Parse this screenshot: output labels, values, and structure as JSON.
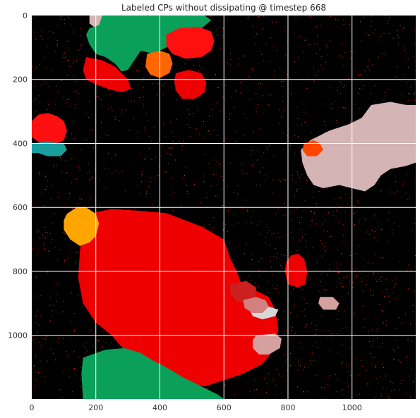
{
  "chart_data": {
    "type": "heatmap",
    "title": "Labeled CPs without dissipating @ timestep 668",
    "xlabel": "",
    "ylabel": "",
    "xlim": [
      0,
      1199
    ],
    "ylim": [
      1199,
      0
    ],
    "xticks": [
      0,
      200,
      400,
      600,
      800,
      1000
    ],
    "yticks": [
      0,
      200,
      400,
      600,
      800,
      1000
    ],
    "grid": true,
    "background_color": "#000000",
    "speckle_color": "#ff2a2a",
    "regions": [
      {
        "label": "large-red-bottom-center",
        "color": "#ee0000",
        "points": [
          [
            158,
            660
          ],
          [
            200,
            615
          ],
          [
            250,
            605
          ],
          [
            330,
            610
          ],
          [
            420,
            618
          ],
          [
            530,
            660
          ],
          [
            600,
            700
          ],
          [
            620,
            760
          ],
          [
            640,
            800
          ],
          [
            655,
            840
          ],
          [
            700,
            860
          ],
          [
            740,
            880
          ],
          [
            760,
            920
          ],
          [
            770,
            980
          ],
          [
            760,
            1040
          ],
          [
            720,
            1090
          ],
          [
            660,
            1120
          ],
          [
            600,
            1140
          ],
          [
            540,
            1160
          ],
          [
            480,
            1150
          ],
          [
            420,
            1120
          ],
          [
            360,
            1100
          ],
          [
            300,
            1060
          ],
          [
            250,
            1000
          ],
          [
            200,
            960
          ],
          [
            160,
            900
          ],
          [
            145,
            820
          ],
          [
            150,
            740
          ]
        ]
      },
      {
        "label": "green-bottom-left",
        "color": "#0aa05a",
        "points": [
          [
            160,
            1070
          ],
          [
            230,
            1045
          ],
          [
            290,
            1040
          ],
          [
            340,
            1055
          ],
          [
            380,
            1080
          ],
          [
            420,
            1100
          ],
          [
            470,
            1130
          ],
          [
            530,
            1160
          ],
          [
            580,
            1185
          ],
          [
            600,
            1199
          ],
          [
            160,
            1199
          ],
          [
            155,
            1120
          ]
        ]
      },
      {
        "label": "salmon-right-center",
        "color": "#d4b4b4",
        "points": [
          [
            840,
            420
          ],
          [
            870,
            390
          ],
          [
            930,
            360
          ],
          [
            990,
            340
          ],
          [
            1030,
            320
          ],
          [
            1060,
            280
          ],
          [
            1120,
            270
          ],
          [
            1170,
            280
          ],
          [
            1199,
            280
          ],
          [
            1199,
            460
          ],
          [
            1170,
            470
          ],
          [
            1120,
            480
          ],
          [
            1090,
            500
          ],
          [
            1070,
            530
          ],
          [
            1040,
            550
          ],
          [
            1000,
            540
          ],
          [
            960,
            530
          ],
          [
            910,
            540
          ],
          [
            880,
            530
          ],
          [
            860,
            500
          ],
          [
            845,
            460
          ]
        ]
      },
      {
        "label": "orange-tomato-right",
        "color": "#ff4500",
        "points": [
          [
            850,
            400
          ],
          [
            880,
            390
          ],
          [
            900,
            400
          ],
          [
            910,
            420
          ],
          [
            890,
            440
          ],
          [
            860,
            440
          ],
          [
            845,
            420
          ]
        ]
      },
      {
        "label": "red-left-mid",
        "color": "#ff1010",
        "points": [
          [
            0,
            330
          ],
          [
            20,
            310
          ],
          [
            50,
            305
          ],
          [
            80,
            315
          ],
          [
            100,
            330
          ],
          [
            110,
            360
          ],
          [
            100,
            390
          ],
          [
            80,
            400
          ],
          [
            50,
            400
          ],
          [
            20,
            395
          ],
          [
            0,
            380
          ]
        ]
      },
      {
        "label": "teal-left-mid",
        "color": "#1a9f9f",
        "points": [
          [
            0,
            400
          ],
          [
            40,
            395
          ],
          [
            100,
            400
          ],
          [
            110,
            420
          ],
          [
            90,
            440
          ],
          [
            50,
            440
          ],
          [
            20,
            430
          ],
          [
            0,
            430
          ]
        ]
      },
      {
        "label": "orange-left",
        "color": "#ffa500",
        "points": [
          [
            110,
            620
          ],
          [
            140,
            600
          ],
          [
            170,
            600
          ],
          [
            200,
            620
          ],
          [
            210,
            650
          ],
          [
            200,
            690
          ],
          [
            180,
            710
          ],
          [
            150,
            720
          ],
          [
            120,
            700
          ],
          [
            100,
            670
          ],
          [
            100,
            640
          ]
        ]
      },
      {
        "label": "red-small-right",
        "color": "#ee0000",
        "points": [
          [
            810,
            750
          ],
          [
            830,
            745
          ],
          [
            850,
            760
          ],
          [
            860,
            800
          ],
          [
            855,
            840
          ],
          [
            830,
            850
          ],
          [
            800,
            840
          ],
          [
            790,
            800
          ],
          [
            795,
            770
          ]
        ]
      },
      {
        "label": "salmon-small-right",
        "color": "#d4a0a0",
        "points": [
          [
            900,
            880
          ],
          [
            940,
            880
          ],
          [
            960,
            900
          ],
          [
            950,
            920
          ],
          [
            910,
            920
          ],
          [
            895,
            900
          ]
        ]
      },
      {
        "label": "salmon-top-left",
        "color": "#d4b4b4",
        "points": [
          [
            180,
            0
          ],
          [
            240,
            0
          ],
          [
            230,
            30
          ],
          [
            200,
            40
          ],
          [
            180,
            25
          ]
        ]
      },
      {
        "label": "green-top",
        "color": "#0aa05a",
        "points": [
          [
            220,
            0
          ],
          [
            540,
            0
          ],
          [
            560,
            15
          ],
          [
            530,
            40
          ],
          [
            480,
            50
          ],
          [
            450,
            80
          ],
          [
            420,
            100
          ],
          [
            380,
            120
          ],
          [
            340,
            110
          ],
          [
            320,
            140
          ],
          [
            300,
            170
          ],
          [
            280,
            175
          ],
          [
            260,
            150
          ],
          [
            230,
            130
          ],
          [
            200,
            120
          ],
          [
            180,
            90
          ],
          [
            170,
            60
          ],
          [
            180,
            40
          ],
          [
            210,
            30
          ]
        ]
      },
      {
        "label": "red-top-right-blob",
        "color": "#ff1010",
        "points": [
          [
            420,
            60
          ],
          [
            460,
            40
          ],
          [
            520,
            35
          ],
          [
            560,
            50
          ],
          [
            570,
            80
          ],
          [
            560,
            110
          ],
          [
            530,
            130
          ],
          [
            480,
            135
          ],
          [
            440,
            120
          ],
          [
            420,
            95
          ]
        ]
      },
      {
        "label": "red-top-left-blob",
        "color": "#ee0000",
        "points": [
          [
            170,
            130
          ],
          [
            220,
            140
          ],
          [
            260,
            160
          ],
          [
            280,
            180
          ],
          [
            300,
            200
          ],
          [
            310,
            230
          ],
          [
            280,
            240
          ],
          [
            240,
            230
          ],
          [
            200,
            215
          ],
          [
            170,
            200
          ],
          [
            160,
            170
          ]
        ]
      },
      {
        "label": "orange-top",
        "color": "#ff6600",
        "points": [
          [
            360,
            120
          ],
          [
            400,
            110
          ],
          [
            430,
            120
          ],
          [
            440,
            150
          ],
          [
            430,
            180
          ],
          [
            400,
            195
          ],
          [
            370,
            185
          ],
          [
            355,
            160
          ]
        ]
      },
      {
        "label": "red-center-top",
        "color": "#ee0000",
        "points": [
          [
            450,
            180
          ],
          [
            490,
            170
          ],
          [
            530,
            180
          ],
          [
            545,
            210
          ],
          [
            540,
            240
          ],
          [
            510,
            260
          ],
          [
            470,
            260
          ],
          [
            450,
            235
          ],
          [
            445,
            205
          ]
        ]
      },
      {
        "label": "gray-light-center-right",
        "color": "#d8d8d8",
        "points": [
          [
            680,
            920
          ],
          [
            740,
            910
          ],
          [
            770,
            920
          ],
          [
            760,
            940
          ],
          [
            720,
            950
          ],
          [
            690,
            940
          ]
        ]
      },
      {
        "label": "salmon-bottom-right",
        "color": "#d4a0a0",
        "points": [
          [
            700,
            1000
          ],
          [
            760,
            995
          ],
          [
            780,
            1010
          ],
          [
            775,
            1040
          ],
          [
            740,
            1060
          ],
          [
            710,
            1060
          ],
          [
            690,
            1040
          ],
          [
            690,
            1015
          ]
        ]
      },
      {
        "label": "red-dark-right",
        "color": "#cc2020",
        "points": [
          [
            620,
            840
          ],
          [
            670,
            830
          ],
          [
            700,
            850
          ],
          [
            700,
            880
          ],
          [
            670,
            900
          ],
          [
            640,
            895
          ],
          [
            620,
            870
          ]
        ]
      },
      {
        "label": "salmon-mid-right",
        "color": "#d48080",
        "points": [
          [
            660,
            890
          ],
          [
            700,
            880
          ],
          [
            730,
            890
          ],
          [
            740,
            910
          ],
          [
            720,
            930
          ],
          [
            690,
            930
          ],
          [
            665,
            915
          ]
        ]
      }
    ]
  }
}
